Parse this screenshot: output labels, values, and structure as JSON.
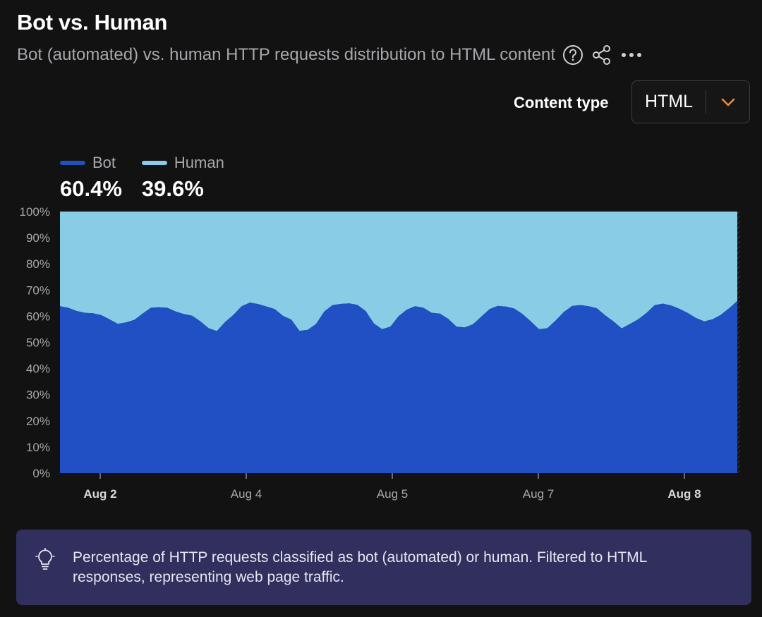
{
  "header": {
    "title": "Bot vs. Human",
    "subtitle": "Bot (automated) vs. human HTTP requests distribution to HTML content",
    "icons": [
      "help-icon",
      "share-icon",
      "more-icon"
    ]
  },
  "filter": {
    "label": "Content type",
    "value": "HTML"
  },
  "legend": [
    {
      "name": "Bot",
      "percent": "60.4%",
      "color": "#2050c4"
    },
    {
      "name": "Human",
      "percent": "39.6%",
      "color": "#89cce5"
    }
  ],
  "chart_data": {
    "type": "area",
    "stacked": true,
    "normalized": true,
    "ylim": [
      0,
      100
    ],
    "y_ticks": [
      "0%",
      "10%",
      "20%",
      "30%",
      "40%",
      "50%",
      "60%",
      "70%",
      "80%",
      "90%",
      "100%"
    ],
    "x_ticks": [
      {
        "label": "Aug 2",
        "bold": true
      },
      {
        "label": "Aug 4",
        "bold": false
      },
      {
        "label": "Aug 5",
        "bold": false
      },
      {
        "label": "Aug 7",
        "bold": false
      },
      {
        "label": "Aug 8",
        "bold": true
      }
    ],
    "grid": false,
    "legend_position": "top-left",
    "series": [
      {
        "name": "Bot",
        "color": "#2050c4",
        "values": [
          63.8,
          63.2,
          62.0,
          61.3,
          61.1,
          60.4,
          58.8,
          57.1,
          57.6,
          58.6,
          61.0,
          63.2,
          63.4,
          63.2,
          61.8,
          60.8,
          60.2,
          58.0,
          55.4,
          54.3,
          57.8,
          60.5,
          63.8,
          65.2,
          64.6,
          63.7,
          62.7,
          60.1,
          58.7,
          54.4,
          54.8,
          57.0,
          61.8,
          64.2,
          64.7,
          64.9,
          64.3,
          62.0,
          57.2,
          55.0,
          56.0,
          60.0,
          62.5,
          63.8,
          63.2,
          61.3,
          61.0,
          59.0,
          56.0,
          55.7,
          56.9,
          59.8,
          62.7,
          63.9,
          63.7,
          62.9,
          60.8,
          58.0,
          55.0,
          55.4,
          58.3,
          61.6,
          63.9,
          64.2,
          63.8,
          63.0,
          60.3,
          58.0,
          55.3,
          57.0,
          58.8,
          61.2,
          64.2,
          64.8,
          64.1,
          62.8,
          61.2,
          59.3,
          58.0,
          58.8,
          60.5,
          63.0,
          65.8
        ]
      },
      {
        "name": "Human",
        "color": "#89cce5",
        "values": [
          36.2,
          36.8,
          38.0,
          38.7,
          38.9,
          39.6,
          41.2,
          42.9,
          42.4,
          41.4,
          39.0,
          36.8,
          36.6,
          36.8,
          38.2,
          39.2,
          39.8,
          42.0,
          44.6,
          45.7,
          42.2,
          39.5,
          36.2,
          34.8,
          35.4,
          36.3,
          37.3,
          39.9,
          41.3,
          45.6,
          45.2,
          43.0,
          38.2,
          35.8,
          35.3,
          35.1,
          35.7,
          38.0,
          42.8,
          45.0,
          44.0,
          40.0,
          37.5,
          36.2,
          36.8,
          38.7,
          39.0,
          41.0,
          44.0,
          44.3,
          43.1,
          40.2,
          37.3,
          36.1,
          36.3,
          37.1,
          39.2,
          42.0,
          45.0,
          44.6,
          41.7,
          38.4,
          36.1,
          35.8,
          36.2,
          37.0,
          39.7,
          42.0,
          44.7,
          43.0,
          41.2,
          38.8,
          35.8,
          35.2,
          35.9,
          37.2,
          38.8,
          40.7,
          42.0,
          41.2,
          39.5,
          37.0,
          34.2
        ]
      }
    ]
  },
  "note": {
    "icon": "lightbulb-icon",
    "text": "Percentage of HTTP requests classified as bot (automated) or human. Filtered to HTML responses, representing web page traffic."
  }
}
